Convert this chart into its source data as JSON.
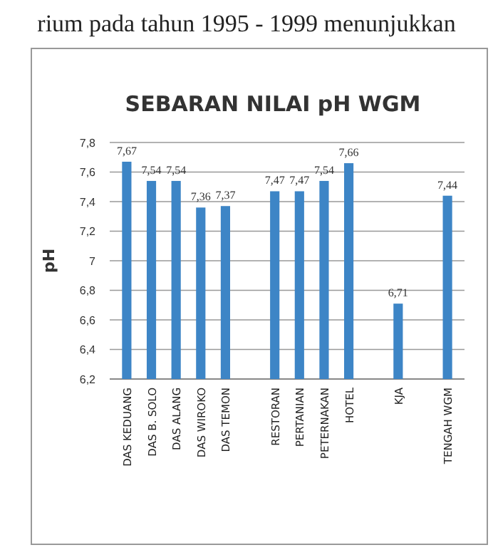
{
  "chart_data": {
    "type": "bar",
    "title": "SEBARAN NILAI pH WGM",
    "ylabel": "pH",
    "annotations": [
      "rium pada tahun 1995 - 1999 menunjukkan"
    ],
    "categories": [
      "DAS KEDUANG",
      "DAS B. SOLO",
      "DAS ALANG",
      "DAS WIROKO",
      "DAS TEMON",
      null,
      "RESTORAN",
      "PERTANIAN",
      "PETERNAKAN",
      "HOTEL",
      null,
      "KJA",
      null,
      "TENGAH WGM"
    ],
    "values": [
      7.67,
      7.54,
      7.54,
      7.36,
      7.37,
      null,
      7.47,
      7.47,
      7.54,
      7.66,
      null,
      6.71,
      null,
      7.44
    ],
    "value_labels": [
      "7,67",
      "7,54",
      "7,54",
      "7,36",
      "7,37",
      null,
      "7,47",
      "7,47",
      "7,54",
      "7,66",
      null,
      "6,71",
      null,
      "7,44"
    ],
    "color": "#3d85c6",
    "ylim": [
      6.2,
      7.8
    ],
    "yticks": [
      {
        "value": 6.2,
        "label": "6,2"
      },
      {
        "value": 6.4,
        "label": "6,4"
      },
      {
        "value": 6.6,
        "label": "6,6"
      },
      {
        "value": 6.8,
        "label": "6,8"
      },
      7,
      {
        "value": 7.2,
        "label": "7,2"
      },
      {
        "value": 7.4,
        "label": "7,4"
      },
      {
        "value": 7.6,
        "label": "7,6"
      },
      {
        "value": 7.8,
        "label": "7,8"
      }
    ],
    "grid": "y"
  }
}
